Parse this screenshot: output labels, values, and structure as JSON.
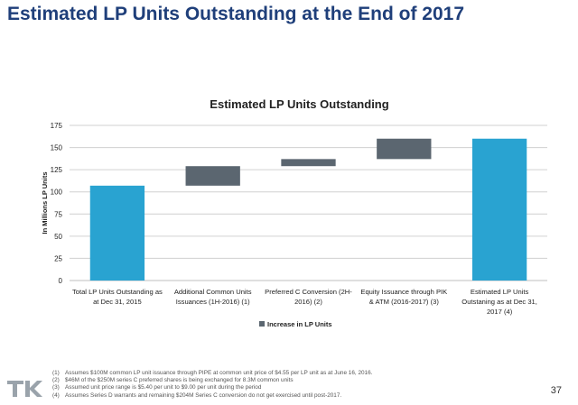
{
  "slide": {
    "title": "Estimated LP Units Outstanding at the End of 2017",
    "page_number": "37",
    "logo_text": "TK"
  },
  "footnotes": [
    {
      "num": "(1)",
      "text": "Assumes $100M common LP unit issuance through PIPE at common unit price of $4.55 per LP unit as at June 16, 2016."
    },
    {
      "num": "(2)",
      "text": "$46M of the $250M series C preferred shares is being exchanged for 8.3M common units"
    },
    {
      "num": "(3)",
      "text": "Assumed unit price range is $5.40 per unit to $9.00 per unit during the period"
    },
    {
      "num": "(4)",
      "text": "Assumes Series D warrants and remaining $204M Series C conversion do not get exercised until post-2017."
    }
  ],
  "colors": {
    "title": "#1f3f7a",
    "total_bar": "#29a3d1",
    "increase_bar": "#5b6670",
    "grid": "#d0d0d0"
  },
  "chart_data": {
    "type": "bar",
    "subtype": "waterfall",
    "title": "Estimated LP Units Outstanding",
    "ylabel": "In Millions LP Units",
    "xlabel": "",
    "ylim": [
      0,
      175
    ],
    "yticks": [
      0,
      25,
      50,
      75,
      100,
      125,
      150,
      175
    ],
    "grid": true,
    "legend_position": "bottom",
    "legend": [
      {
        "name": "Increase in LP Units",
        "color": "#5b6670"
      }
    ],
    "bars": [
      {
        "label": [
          "Total LP Units Outstanding as",
          "at Dec 31, 2015"
        ],
        "kind": "total",
        "start": 0,
        "end": 107
      },
      {
        "label": [
          "Additional Common Units",
          "Issuances (1H-2016) (1)"
        ],
        "kind": "increase",
        "start": 107,
        "end": 129
      },
      {
        "label": [
          "Preferred C Conversion (2H-",
          "2016) (2)"
        ],
        "kind": "increase",
        "start": 129,
        "end": 137
      },
      {
        "label": [
          "Equity Issuance through PIK",
          "& ATM (2016-2017) (3)"
        ],
        "kind": "increase",
        "start": 137,
        "end": 160
      },
      {
        "label": [
          "Estimated LP Units",
          "Outstaning as at Dec 31,",
          "2017 (4)"
        ],
        "kind": "total",
        "start": 0,
        "end": 160
      }
    ]
  }
}
